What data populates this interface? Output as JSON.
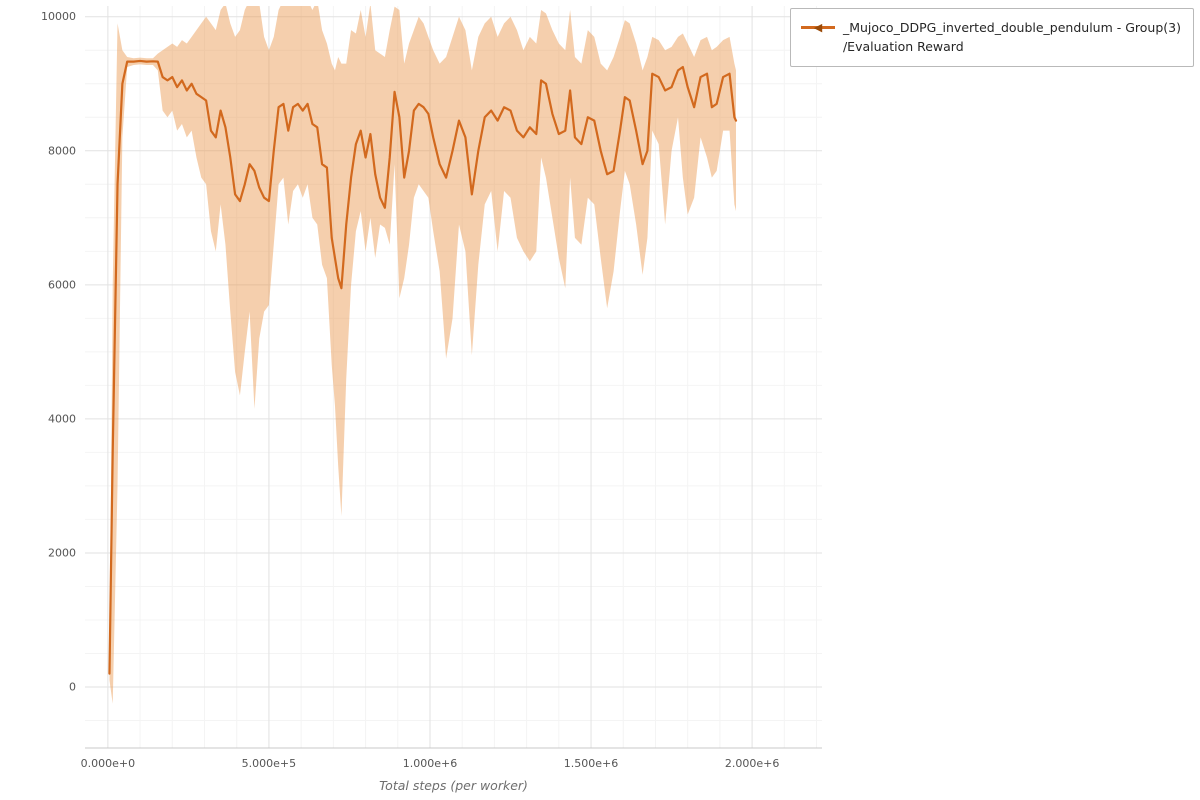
{
  "legend": {
    "marker_glyph": "◀",
    "line1": "_Mujoco_DDPG_inverted_double_pendulum - Group(3)",
    "line2": "/Evaluation Reward"
  },
  "chart_data": {
    "type": "line",
    "title": "",
    "xlabel": "Total steps (per worker)",
    "ylabel": "",
    "xlim": [
      -71000,
      2217000
    ],
    "ylim": [
      -910,
      10160
    ],
    "grid": true,
    "legend_position": "outside-top-right",
    "x_tick_values": [
      0,
      500000,
      1000000,
      1500000,
      2000000
    ],
    "x_tick_labels": [
      "0.000e+0",
      "5.000e+5",
      "1.000e+6",
      "1.500e+6",
      "2.000e+6"
    ],
    "y_tick_values": [
      0,
      2000,
      4000,
      6000,
      8000,
      10000
    ],
    "y_tick_labels": [
      "0",
      "2000",
      "4000",
      "6000",
      "8000",
      "10000"
    ],
    "x_minor_step": 100000,
    "y_minor_step": 500,
    "colors": {
      "line": "#d2691e",
      "marker": "#9a4a08",
      "band": "#e8954a",
      "band_opacity": 0.45,
      "grid_major": "#e2e2e2",
      "grid_minor": "#f4f4f4",
      "axis": "#c8c8c8",
      "tick_text": "#555555",
      "label_text": "#6e6e6e"
    },
    "series": [
      {
        "name": "_Mujoco_DDPG_inverted_double_pendulum - Group(3) /Evaluation Reward",
        "marker": "triangle-left",
        "x": [
          5000,
          15000,
          30000,
          45000,
          60000,
          80000,
          100000,
          120000,
          140000,
          155000,
          170000,
          185000,
          200000,
          215000,
          230000,
          245000,
          260000,
          275000,
          290000,
          305000,
          320000,
          335000,
          350000,
          365000,
          380000,
          395000,
          410000,
          425000,
          440000,
          455000,
          470000,
          485000,
          500000,
          515000,
          530000,
          545000,
          560000,
          575000,
          590000,
          605000,
          620000,
          635000,
          650000,
          665000,
          680000,
          695000,
          705000,
          715000,
          725000,
          740000,
          755000,
          770000,
          785000,
          800000,
          815000,
          830000,
          845000,
          860000,
          875000,
          890000,
          905000,
          920000,
          935000,
          950000,
          965000,
          980000,
          995000,
          1010000,
          1030000,
          1050000,
          1070000,
          1090000,
          1110000,
          1130000,
          1150000,
          1170000,
          1190000,
          1210000,
          1230000,
          1250000,
          1270000,
          1290000,
          1310000,
          1330000,
          1345000,
          1360000,
          1380000,
          1400000,
          1420000,
          1435000,
          1450000,
          1470000,
          1490000,
          1510000,
          1530000,
          1550000,
          1570000,
          1590000,
          1605000,
          1620000,
          1640000,
          1660000,
          1675000,
          1690000,
          1710000,
          1730000,
          1750000,
          1770000,
          1785000,
          1800000,
          1820000,
          1840000,
          1860000,
          1875000,
          1890000,
          1910000,
          1930000,
          1945000,
          1950000
        ],
        "mean": [
          200,
          3500,
          7500,
          9000,
          9330,
          9330,
          9340,
          9330,
          9335,
          9330,
          9100,
          9050,
          9100,
          8950,
          9050,
          8900,
          9000,
          8850,
          8800,
          8750,
          8300,
          8200,
          8600,
          8350,
          7900,
          7350,
          7250,
          7500,
          7800,
          7700,
          7450,
          7300,
          7250,
          8000,
          8650,
          8700,
          8300,
          8650,
          8700,
          8600,
          8700,
          8400,
          8350,
          7800,
          7750,
          6700,
          6400,
          6100,
          5950,
          6900,
          7600,
          8100,
          8300,
          7900,
          8250,
          7650,
          7300,
          7150,
          7900,
          8880,
          8500,
          7600,
          8000,
          8600,
          8700,
          8650,
          8550,
          8200,
          7800,
          7600,
          8000,
          8450,
          8200,
          7350,
          8000,
          8500,
          8600,
          8450,
          8650,
          8600,
          8300,
          8200,
          8350,
          8250,
          9050,
          9000,
          8550,
          8250,
          8300,
          8900,
          8200,
          8100,
          8500,
          8450,
          8000,
          7650,
          7700,
          8300,
          8800,
          8750,
          8300,
          7800,
          8000,
          9150,
          9100,
          8900,
          8950,
          9200,
          9250,
          8950,
          8650,
          9100,
          9150,
          8650,
          8700,
          9100,
          9150,
          8500,
          8450
        ],
        "band_lower": [
          100,
          -250,
          3000,
          8200,
          9250,
          9280,
          9290,
          9280,
          9280,
          9200,
          8600,
          8500,
          8600,
          8300,
          8400,
          8200,
          8300,
          7900,
          7600,
          7500,
          6800,
          6500,
          7200,
          6600,
          5600,
          4700,
          4350,
          5000,
          5600,
          4150,
          5200,
          5600,
          5700,
          6600,
          7500,
          7600,
          6900,
          7400,
          7500,
          7300,
          7500,
          7000,
          6900,
          6300,
          6100,
          4800,
          4200,
          3300,
          2550,
          4600,
          6000,
          6800,
          7100,
          6500,
          7000,
          6400,
          6900,
          6850,
          6600,
          7800,
          5800,
          6100,
          6600,
          7300,
          7500,
          7400,
          7300,
          6800,
          6200,
          4900,
          5500,
          6900,
          6500,
          4950,
          6300,
          7200,
          7400,
          6500,
          7400,
          7300,
          6700,
          6500,
          6350,
          6500,
          7900,
          7600,
          7000,
          6400,
          5950,
          7600,
          6700,
          6600,
          7300,
          7200,
          6400,
          5650,
          6200,
          7100,
          7700,
          7500,
          6900,
          6150,
          6700,
          8300,
          8100,
          6900,
          8000,
          8500,
          7600,
          7050,
          7300,
          8200,
          7900,
          7600,
          7700,
          8300,
          8300,
          7200,
          7100
        ],
        "band_upper": [
          300,
          6000,
          9900,
          9500,
          9400,
          9380,
          9390,
          9380,
          9380,
          9450,
          9500,
          9550,
          9600,
          9550,
          9650,
          9600,
          9700,
          9800,
          9900,
          10000,
          9900,
          9800,
          10100,
          10200,
          9900,
          9700,
          9800,
          10100,
          10250,
          10250,
          10200,
          9700,
          9500,
          9700,
          10100,
          10250,
          10250,
          10250,
          10250,
          10200,
          10250,
          10100,
          10250,
          9800,
          9600,
          9300,
          9200,
          9400,
          9300,
          9300,
          9800,
          9750,
          10100,
          9700,
          10200,
          9500,
          9450,
          9400,
          9800,
          10150,
          10100,
          9300,
          9600,
          9800,
          10000,
          9900,
          9700,
          9500,
          9300,
          9400,
          9700,
          10000,
          9800,
          9200,
          9700,
          9900,
          10000,
          9700,
          9900,
          10000,
          9800,
          9500,
          9700,
          9600,
          10100,
          10050,
          9800,
          9600,
          9500,
          10100,
          9400,
          9300,
          9800,
          9700,
          9300,
          9200,
          9400,
          9700,
          9950,
          9900,
          9600,
          9200,
          9400,
          9700,
          9650,
          9500,
          9550,
          9700,
          9750,
          9600,
          9400,
          9650,
          9700,
          9500,
          9550,
          9650,
          9700,
          9300,
          9200
        ]
      }
    ]
  }
}
